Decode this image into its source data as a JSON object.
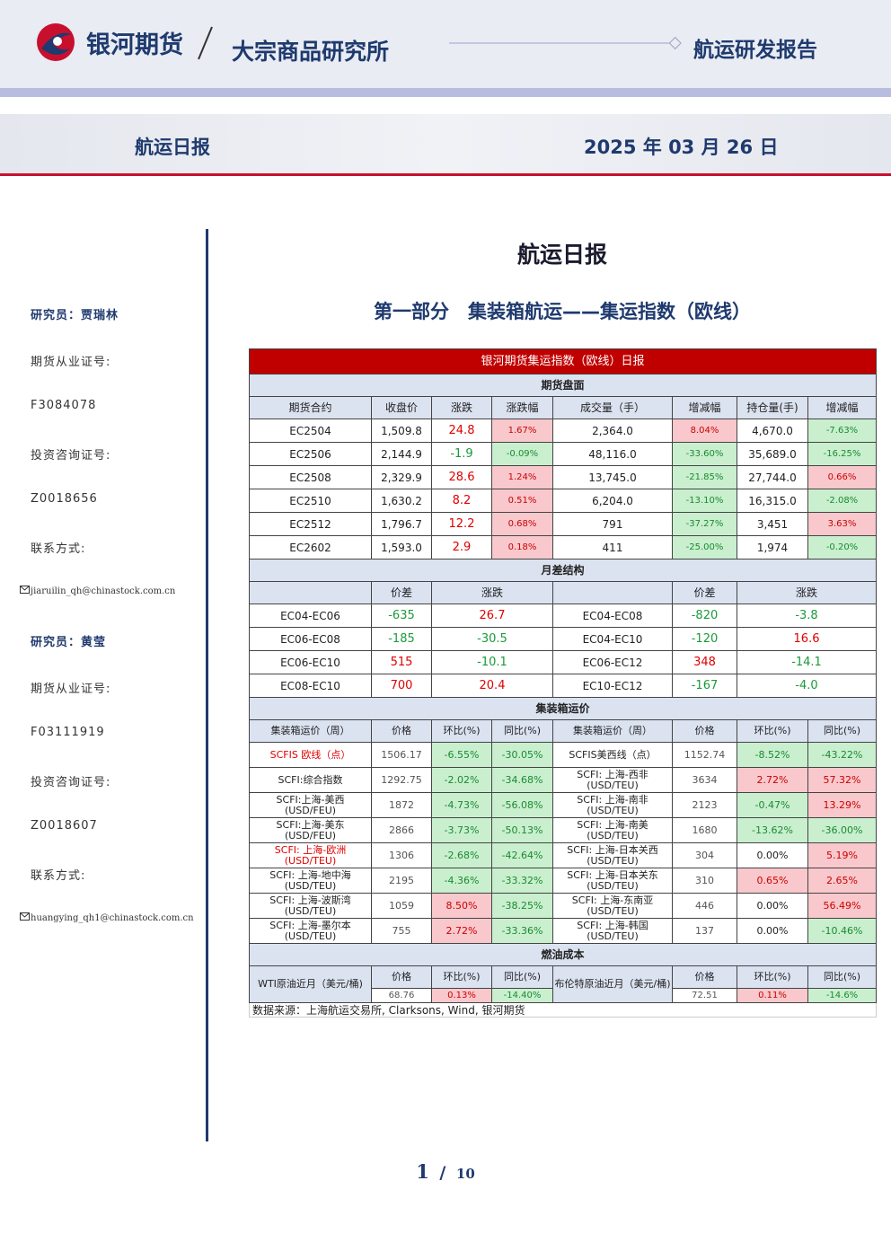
{
  "header": {
    "brand": "银河期货",
    "institute": "大宗商品研究所",
    "report_type": "航运研发报告"
  },
  "banner": {
    "title": "航运日报",
    "date": "2025 年 03 月 26 日"
  },
  "sidebar": [
    {
      "name": "研究员：贾瑞林",
      "items": [
        "期货从业证号:",
        "F3084078",
        "投资咨询证号:",
        "Z0018656",
        "联系方式:",
        "jiaruilin_qh@chinastock.com.cn"
      ]
    },
    {
      "name": "研究员：黄莹",
      "items": [
        "期货从业证号:",
        "F03111919",
        "投资咨询证号:",
        "Z0018607",
        "联系方式:",
        "huangying_qh1@chinastock.com.cn"
      ]
    }
  ],
  "main": {
    "title": "航运日报",
    "section": "第一部分　集装箱航运——集运指数（欧线）"
  },
  "table": {
    "title": "银河期货集运指数（欧线）日报",
    "futures": {
      "section": "期货盘面",
      "headers": [
        "期货合约",
        "收盘价",
        "涨跌",
        "涨跌幅",
        "成交量（手）",
        "增减幅",
        "持仓量(手)",
        "增减幅"
      ],
      "rows": [
        [
          "EC2504",
          "1,509.8",
          "24.8",
          "1.67%",
          "2,364.0",
          "8.04%",
          "4,670.0",
          "-7.63%"
        ],
        [
          "EC2506",
          "2,144.9",
          "-1.9",
          "-0.09%",
          "48,116.0",
          "-33.60%",
          "35,689.0",
          "-16.25%"
        ],
        [
          "EC2508",
          "2,329.9",
          "28.6",
          "1.24%",
          "13,745.0",
          "-21.85%",
          "27,744.0",
          "0.66%"
        ],
        [
          "EC2510",
          "1,630.2",
          "8.2",
          "0.51%",
          "6,204.0",
          "-13.10%",
          "16,315.0",
          "-2.08%"
        ],
        [
          "EC2512",
          "1,796.7",
          "12.2",
          "0.68%",
          "791",
          "-37.27%",
          "3,451",
          "3.63%"
        ],
        [
          "EC2602",
          "1,593.0",
          "2.9",
          "0.18%",
          "411",
          "-25.00%",
          "1,974",
          "-0.20%"
        ]
      ]
    },
    "spreads": {
      "section": "月差结构",
      "headers": [
        "价差",
        "涨跌"
      ],
      "rows": [
        [
          "EC04-EC06",
          "-635",
          "26.7",
          "EC04-EC08",
          "-820",
          "-3.8"
        ],
        [
          "EC06-EC08",
          "-185",
          "-30.5",
          "EC04-EC10",
          "-120",
          "16.6"
        ],
        [
          "EC06-EC10",
          "515",
          "-10.1",
          "EC06-EC12",
          "348",
          "-14.1"
        ],
        [
          "EC08-EC10",
          "700",
          "20.4",
          "EC10-EC12",
          "-167",
          "-4.0"
        ]
      ]
    },
    "freight": {
      "section": "集装箱运价",
      "headers": [
        "集装箱运价（周）",
        "价格",
        "环比(%)",
        "同比(%)",
        "集装箱运价（周）",
        "价格",
        "环比(%)",
        "同比(%)"
      ],
      "rows": [
        [
          "SCFIS 欧线（点）",
          "1506.17",
          "-6.55%",
          "-30.05%",
          "SCFIS美西线（点）",
          "1152.74",
          "-8.52%",
          "-43.22%"
        ],
        [
          "SCFI:综合指数",
          "1292.75",
          "-2.02%",
          "-34.68%",
          "SCFI: 上海-西非\n(USD/TEU)",
          "3634",
          "2.72%",
          "57.32%"
        ],
        [
          "SCFI:上海-美西\n(USD/FEU)",
          "1872",
          "-4.73%",
          "-56.08%",
          "SCFI: 上海-南非\n(USD/TEU)",
          "2123",
          "-0.47%",
          "13.29%"
        ],
        [
          "SCFI:上海-美东\n(USD/FEU)",
          "2866",
          "-3.73%",
          "-50.13%",
          "SCFI: 上海-南美\n(USD/TEU)",
          "1680",
          "-13.62%",
          "-36.00%"
        ],
        [
          "SCFI: 上海-欧洲\n(USD/TEU)",
          "1306",
          "-2.68%",
          "-42.64%",
          "SCFI: 上海-日本关西\n(USD/TEU)",
          "304",
          "0.00%",
          "5.19%"
        ],
        [
          "SCFI: 上海-地中海\n(USD/TEU)",
          "2195",
          "-4.36%",
          "-33.32%",
          "SCFI: 上海-日本关东\n(USD/TEU)",
          "310",
          "0.65%",
          "2.65%"
        ],
        [
          "SCFI: 上海-波斯湾\n(USD/TEU)",
          "1059",
          "8.50%",
          "-38.25%",
          "SCFI: 上海-东南亚\n(USD/TEU)",
          "446",
          "0.00%",
          "56.49%"
        ],
        [
          "SCFI: 上海-墨尔本\n(USD/TEU)",
          "755",
          "2.72%",
          "-33.36%",
          "SCFI: 上海-韩国\n(USD/TEU)",
          "137",
          "0.00%",
          "-10.46%"
        ]
      ]
    },
    "fuel": {
      "section": "燃油成本",
      "headers": [
        "WTI原油近月（美元/桶)",
        "价格",
        "环比(%)",
        "同比(%)",
        "布伦特原油近月（美元/桶)",
        "价格",
        "环比(%)",
        "同比(%)"
      ],
      "values": [
        "68.76",
        "0.13%",
        "-14.40%",
        "72.51",
        "0.11%",
        "-14.6%"
      ]
    },
    "source": "数据来源：上海航运交易所, Clarksons, Wind, 银河期货"
  },
  "footer": {
    "page": "1",
    "separator": "/",
    "total": "10"
  }
}
